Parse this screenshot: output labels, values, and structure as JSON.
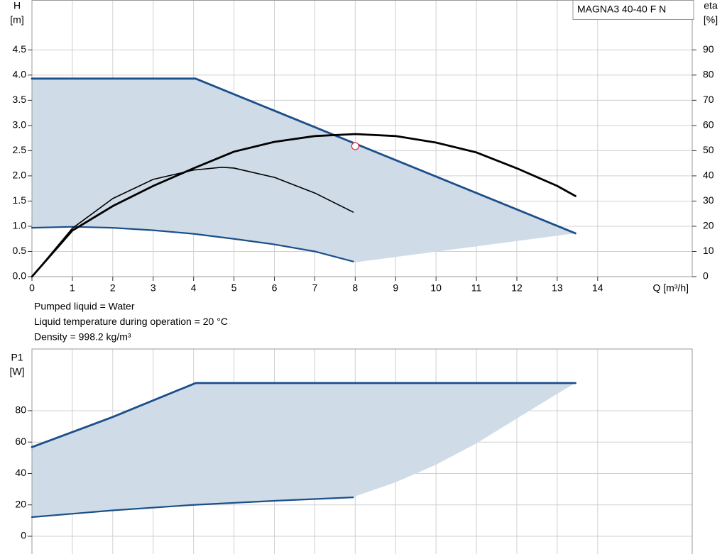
{
  "chart_data": [
    {
      "type": "line",
      "title": "MAGNA3 40-40 F N",
      "ylabel": "H",
      "yunit": "[m]",
      "y2label": "eta",
      "y2unit": "[%]",
      "xlabel": "Q [m³/h]",
      "xlim": [
        0,
        16.34
      ],
      "xticks": [
        0,
        1,
        2,
        3,
        4,
        5,
        6,
        7,
        8,
        9,
        10,
        11,
        12,
        13,
        14
      ],
      "ylim": [
        0,
        5.49
      ],
      "yticks": [
        {
          "value": 0,
          "label": "0.0"
        },
        0.5,
        {
          "value": 1,
          "label": "1.0"
        },
        1.5,
        {
          "value": 2,
          "label": "2.0"
        },
        2.5,
        {
          "value": 3,
          "label": "3.0"
        },
        3.5,
        {
          "value": 4,
          "label": "4.0"
        },
        4.5
      ],
      "y2lim": [
        0,
        109.8
      ],
      "y2ticks": [
        0,
        10,
        20,
        30,
        40,
        50,
        60,
        70,
        80,
        90
      ],
      "grid": true,
      "area_color": "#cfdbe6",
      "series": [
        {
          "color": "#1a4f8a",
          "line": true,
          "x": [
            0,
            4.05,
            13.45
          ],
          "values": [
            3.93,
            3.93,
            0.86
          ]
        },
        {
          "color": "#1a4f8a",
          "line": true,
          "x": [
            0,
            1,
            2,
            3,
            4,
            5,
            6,
            7,
            7.95
          ],
          "values": [
            0.97,
            0.99,
            0.97,
            0.92,
            0.85,
            0.75,
            0.64,
            0.5,
            0.3
          ]
        },
        {
          "color": "#cfdbe6",
          "line": false,
          "x": [
            7.95,
            13.45
          ],
          "values": [
            0.28,
            0.86
          ]
        },
        {
          "color": "#000000",
          "line": true,
          "axis": "y2",
          "x": [
            0,
            1,
            2,
            3,
            4,
            5,
            6,
            7,
            8,
            9,
            10,
            11,
            12,
            13,
            13.45
          ],
          "values": [
            0,
            18.3,
            28,
            36,
            43,
            49.6,
            53.5,
            55.8,
            56.6,
            55.8,
            53.2,
            49.3,
            43,
            36,
            32
          ]
        },
        {
          "color": "#000000",
          "line": true,
          "axis": "y2",
          "x": [
            0,
            1,
            2,
            3,
            4,
            4.7,
            5,
            6,
            7,
            7.95
          ],
          "values": [
            0,
            19.2,
            31,
            38.6,
            42.3,
            43.4,
            43.1,
            39.4,
            33.2,
            25.6
          ]
        }
      ],
      "marker": {
        "x": 8,
        "y": 2.59,
        "color": "#e03040"
      },
      "notes": [
        "Pumped liquid = Water",
        "Liquid temperature during operation = 20 °C",
        "Density = 998.2 kg/m³"
      ]
    },
    {
      "type": "line",
      "ylabel": "P1",
      "yunit": "[W]",
      "xlim": [
        0,
        16.34
      ],
      "xticks": [
        0,
        1,
        2,
        3,
        4,
        5,
        6,
        7,
        8,
        9,
        10,
        11,
        12,
        13,
        14
      ],
      "ylim": [
        0,
        119.3
      ],
      "yticks": [
        0,
        20,
        40,
        60,
        80
      ],
      "grid": true,
      "area_color": "#cfdbe6",
      "series": [
        {
          "color": "#1a4f8a",
          "line": true,
          "x": [
            0,
            2,
            4.05,
            13.45
          ],
          "values": [
            56.8,
            76,
            97.6,
            97.6
          ]
        },
        {
          "color": "#1a4f8a",
          "line": true,
          "x": [
            0,
            2,
            4,
            6,
            7.95
          ],
          "values": [
            12.2,
            16.5,
            20,
            22.6,
            24.8
          ]
        },
        {
          "color": "#cfdbe6",
          "line": false,
          "x": [
            7.95,
            9,
            10,
            11,
            12,
            13,
            13.45
          ],
          "values": [
            25,
            34.4,
            45.6,
            59.2,
            75,
            90.8,
            97.6
          ]
        }
      ]
    }
  ]
}
